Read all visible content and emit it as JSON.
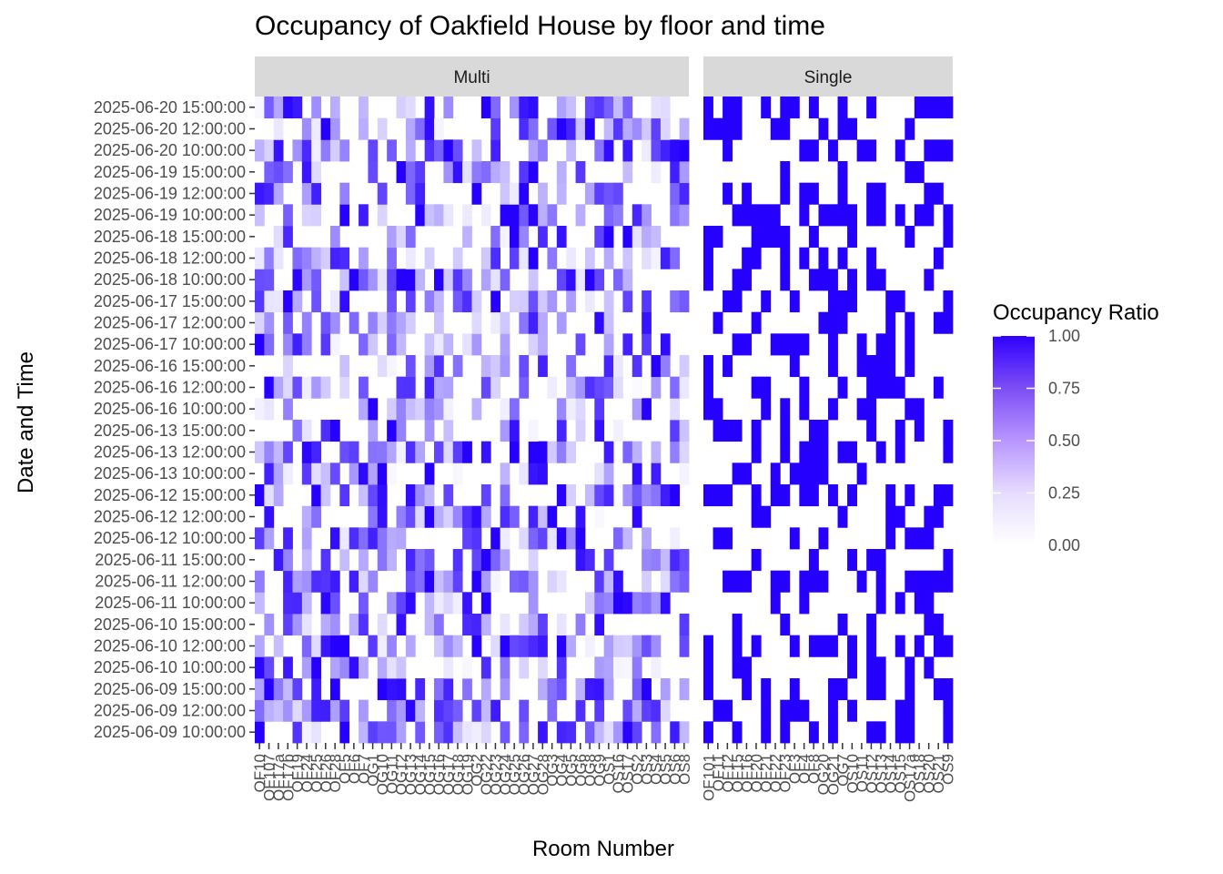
{
  "chart_data": {
    "type": "heatmap",
    "title": "Occupancy of Oakfield House by floor and time",
    "xlabel": "Room Number",
    "ylabel": "Date and Time",
    "facets": [
      "Multi",
      "Single"
    ],
    "y_categories": [
      "2025-06-09 10:00:00",
      "2025-06-09 12:00:00",
      "2025-06-09 15:00:00",
      "2025-06-10 10:00:00",
      "2025-06-10 12:00:00",
      "2025-06-10 15:00:00",
      "2025-06-11 10:00:00",
      "2025-06-11 12:00:00",
      "2025-06-11 15:00:00",
      "2025-06-12 10:00:00",
      "2025-06-12 12:00:00",
      "2025-06-12 15:00:00",
      "2025-06-13 10:00:00",
      "2025-06-13 12:00:00",
      "2025-06-13 15:00:00",
      "2025-06-16 10:00:00",
      "2025-06-16 12:00:00",
      "2025-06-16 15:00:00",
      "2025-06-17 10:00:00",
      "2025-06-17 12:00:00",
      "2025-06-17 15:00:00",
      "2025-06-18 10:00:00",
      "2025-06-18 12:00:00",
      "2025-06-18 15:00:00",
      "2025-06-19 10:00:00",
      "2025-06-19 12:00:00",
      "2025-06-19 15:00:00",
      "2025-06-20 10:00:00",
      "2025-06-20 12:00:00",
      "2025-06-20 15:00:00"
    ],
    "x_multi_visible_labels": [
      "OF10",
      "OF107",
      "OF17a",
      "OF17b",
      "OF19",
      "OF24",
      "OF25",
      "OF26",
      "OF28",
      "OF5",
      "OF6",
      "OF7",
      "OG1",
      "OG10",
      "OG11",
      "OG12",
      "OG13",
      "OG14",
      "OG15",
      "OG16",
      "OG17",
      "OG18",
      "OG19",
      "OG2",
      "OG22",
      "OG23",
      "OG24",
      "OG25",
      "OG26",
      "OG27",
      "OG28",
      "OG3",
      "OG4",
      "OG5",
      "OG6",
      "OG8",
      "OG9",
      "OS1",
      "OS16",
      "OS17",
      "OS2",
      "OS3",
      "OS4",
      "OS5",
      "OS6",
      "OS8"
    ],
    "x_single_visible_labels": [
      "OF101",
      "OF11",
      "OF12",
      "OF15",
      "OF16",
      "OF20",
      "OF21",
      "OF22",
      "OF23",
      "OF3",
      "OF4",
      "OF8",
      "OG20",
      "OG21",
      "OG7",
      "OS10",
      "OS11",
      "OS12",
      "OS13",
      "OS14",
      "OS15",
      "OS17a",
      "OS18",
      "OS20",
      "OS21",
      "OS9"
    ],
    "multi_column_count": 46,
    "single_column_count": 26,
    "fill_scale": {
      "low": "#FFFFFF",
      "high": "#0000FF",
      "limits": [
        0,
        1
      ]
    },
    "legend": {
      "title": "Occupancy Ratio",
      "breaks": [
        "0.00",
        "0.25",
        "0.50",
        "0.75",
        "1.00"
      ],
      "position": "right"
    },
    "grid": true,
    "values_note": "Cell values are per-room occupancy ratios 0–1; Multi facet shows graded values, Single facet shows binary 0/1."
  }
}
